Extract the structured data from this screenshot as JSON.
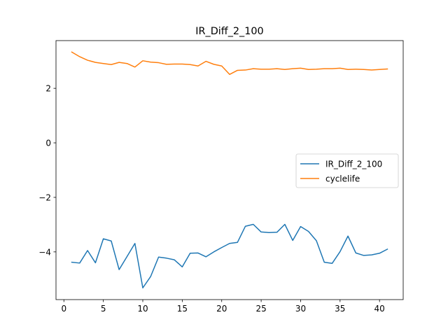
{
  "chart_data": {
    "type": "line",
    "title": "IR_Diff_2_100",
    "xlabel": "",
    "ylabel": "",
    "xlim": [
      -1.0,
      43.0
    ],
    "ylim": [
      -5.75,
      3.75
    ],
    "x_ticks": [
      0,
      5,
      10,
      15,
      20,
      25,
      30,
      35,
      40
    ],
    "y_ticks": [
      -4,
      -2,
      0,
      2
    ],
    "y_tick_labels": [
      "−4",
      "−2",
      "0",
      "2"
    ],
    "x": [
      1,
      2,
      3,
      4,
      5,
      6,
      7,
      8,
      9,
      10,
      11,
      12,
      13,
      14,
      15,
      16,
      17,
      18,
      19,
      20,
      21,
      22,
      23,
      24,
      25,
      26,
      27,
      28,
      29,
      30,
      31,
      32,
      33,
      34,
      35,
      36,
      37,
      38,
      39,
      40,
      41
    ],
    "series": [
      {
        "name": "IR_Diff_2_100",
        "color": "#1f77b4",
        "values": [
          -4.38,
          -4.41,
          -3.95,
          -4.4,
          -3.52,
          -3.6,
          -4.65,
          -4.17,
          -3.69,
          -5.32,
          -4.9,
          -4.19,
          -4.23,
          -4.29,
          -4.55,
          -4.05,
          -4.04,
          -4.18,
          -4.0,
          -3.84,
          -3.69,
          -3.65,
          -3.06,
          -2.99,
          -3.27,
          -3.29,
          -3.28,
          -2.99,
          -3.58,
          -3.07,
          -3.25,
          -3.59,
          -4.38,
          -4.42,
          -3.99,
          -3.42,
          -4.04,
          -4.13,
          -4.11,
          -4.05,
          -3.9
        ]
      },
      {
        "name": "cyclelife",
        "color": "#ff7f0e",
        "values": [
          3.33,
          3.16,
          3.03,
          2.95,
          2.91,
          2.87,
          2.95,
          2.91,
          2.78,
          3.01,
          2.96,
          2.94,
          2.88,
          2.89,
          2.89,
          2.87,
          2.82,
          2.99,
          2.88,
          2.82,
          2.51,
          2.66,
          2.67,
          2.72,
          2.7,
          2.7,
          2.72,
          2.69,
          2.72,
          2.74,
          2.69,
          2.7,
          2.72,
          2.72,
          2.74,
          2.69,
          2.7,
          2.69,
          2.67,
          2.69,
          2.71
        ]
      }
    ],
    "grid": false,
    "legend_position": "center-right"
  }
}
